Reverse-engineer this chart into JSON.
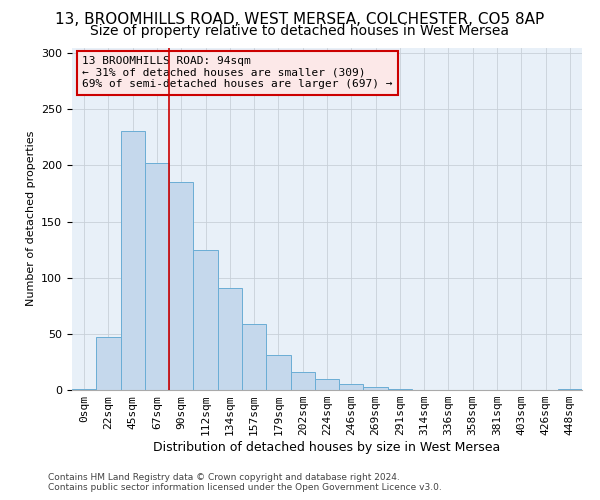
{
  "title_line1": "13, BROOMHILLS ROAD, WEST MERSEA, COLCHESTER, CO5 8AP",
  "title_line2": "Size of property relative to detached houses in West Mersea",
  "xlabel": "Distribution of detached houses by size in West Mersea",
  "ylabel": "Number of detached properties",
  "footer_line1": "Contains HM Land Registry data © Crown copyright and database right 2024.",
  "footer_line2": "Contains public sector information licensed under the Open Government Licence v3.0.",
  "bin_labels": [
    "0sqm",
    "22sqm",
    "45sqm",
    "67sqm",
    "90sqm",
    "112sqm",
    "134sqm",
    "157sqm",
    "179sqm",
    "202sqm",
    "224sqm",
    "246sqm",
    "269sqm",
    "291sqm",
    "314sqm",
    "336sqm",
    "358sqm",
    "381sqm",
    "403sqm",
    "426sqm",
    "448sqm"
  ],
  "bar_values": [
    1,
    47,
    231,
    202,
    185,
    125,
    91,
    59,
    31,
    16,
    10,
    5,
    3,
    1,
    0,
    0,
    0,
    0,
    0,
    0,
    1
  ],
  "bar_color": "#c5d8ec",
  "bar_edge_color": "#6aadd5",
  "annotation_box_text": "13 BROOMHILLS ROAD: 94sqm\n← 31% of detached houses are smaller (309)\n69% of semi-detached houses are larger (697) →",
  "annotation_box_facecolor": "#fce8e8",
  "annotation_box_edgecolor": "#cc0000",
  "vline_x_index": 4,
  "vline_color": "#cc0000",
  "ylim": [
    0,
    305
  ],
  "yticks": [
    0,
    50,
    100,
    150,
    200,
    250,
    300
  ],
  "grid_color": "#c8d0d8",
  "background_color": "#e8f0f8",
  "title1_fontsize": 11,
  "title2_fontsize": 10,
  "xlabel_fontsize": 9,
  "ylabel_fontsize": 8,
  "tick_fontsize": 8,
  "ann_fontsize": 8
}
